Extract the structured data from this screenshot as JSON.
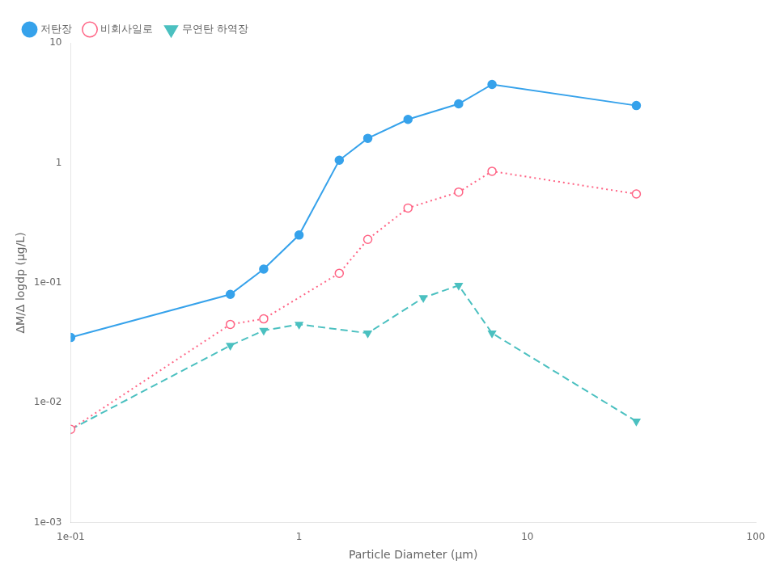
{
  "chart_data": {
    "type": "line",
    "xlabel": "Particle Diameter (μm)",
    "ylabel": "ΔM/Δ logdp (μg/L)",
    "log": true,
    "grid": false,
    "legend": "upper left",
    "xlim": [
      0.1,
      100
    ],
    "ylim": [
      0.001,
      10
    ],
    "xticks": [
      {
        "value": 0.1,
        "label": "1e-01"
      },
      1,
      10,
      100
    ],
    "yticks": [
      {
        "value": 0.001,
        "label": "1e-03"
      },
      {
        "value": 0.01,
        "label": "1e-02"
      },
      {
        "value": 0.1,
        "label": "1e-01"
      },
      1,
      10
    ],
    "series": [
      {
        "name": "저탄장",
        "marker": "circle",
        "line_style": "solid",
        "x": [
          0.1,
          0.5,
          0.7,
          1.0,
          1.5,
          2.0,
          3.0,
          5.0,
          7.0,
          30.0
        ],
        "values": [
          0.035,
          0.08,
          0.13,
          0.25,
          1.05,
          1.6,
          2.3,
          3.1,
          4.5,
          3.0
        ]
      },
      {
        "name": "비회사일로",
        "marker": "open_circle",
        "line_style": "dotted",
        "x": [
          0.1,
          0.5,
          0.7,
          1.5,
          2.0,
          3.0,
          5.0,
          7.0,
          30.0
        ],
        "values": [
          0.006,
          0.045,
          0.05,
          0.12,
          0.23,
          0.42,
          0.57,
          0.85,
          0.55
        ]
      },
      {
        "name": "무연탄 하역장",
        "marker": "triangle_down",
        "line_style": "dashed",
        "x": [
          0.1,
          0.5,
          0.7,
          1.0,
          2.0,
          3.5,
          5.0,
          7.0,
          30.0
        ],
        "values": [
          0.006,
          0.03,
          0.04,
          0.045,
          0.038,
          0.075,
          0.095,
          0.038,
          0.007
        ]
      }
    ]
  }
}
